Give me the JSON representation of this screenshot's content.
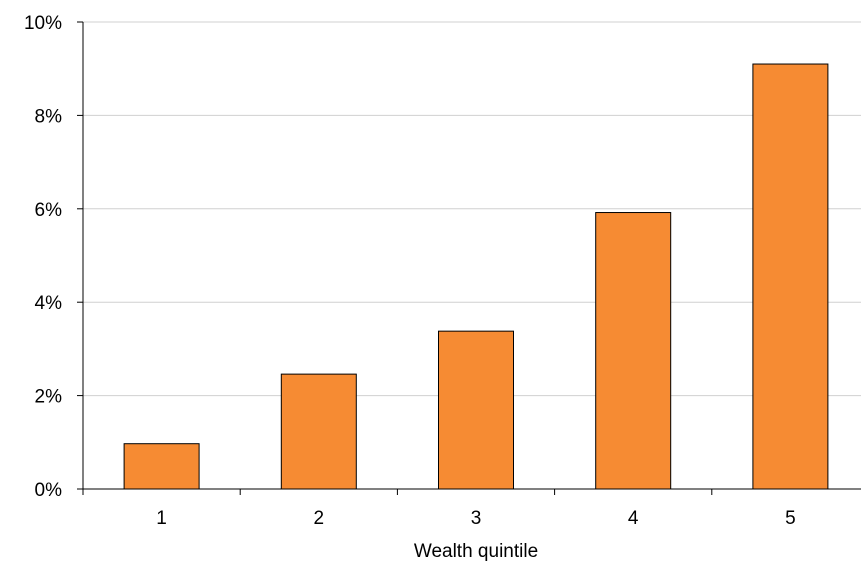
{
  "chart_data": {
    "type": "bar",
    "categories": [
      "1",
      "2",
      "3",
      "4",
      "5"
    ],
    "values": [
      0.97,
      2.46,
      3.38,
      5.92,
      9.1
    ],
    "value_unit": "%",
    "title": "",
    "xlabel": "Wealth quintile",
    "ylabel": "",
    "ylim": [
      0,
      10
    ],
    "yticks": [
      0,
      2,
      4,
      6,
      8,
      10
    ],
    "ytick_labels": [
      "0%",
      "2%",
      "4%",
      "6%",
      "8%",
      "10%"
    ],
    "grid": true,
    "legend": "none",
    "colors": {
      "bar_fill": "#F68B33",
      "bar_stroke": "#000000",
      "grid": "#D0D0D0",
      "axis": "#000000"
    }
  }
}
